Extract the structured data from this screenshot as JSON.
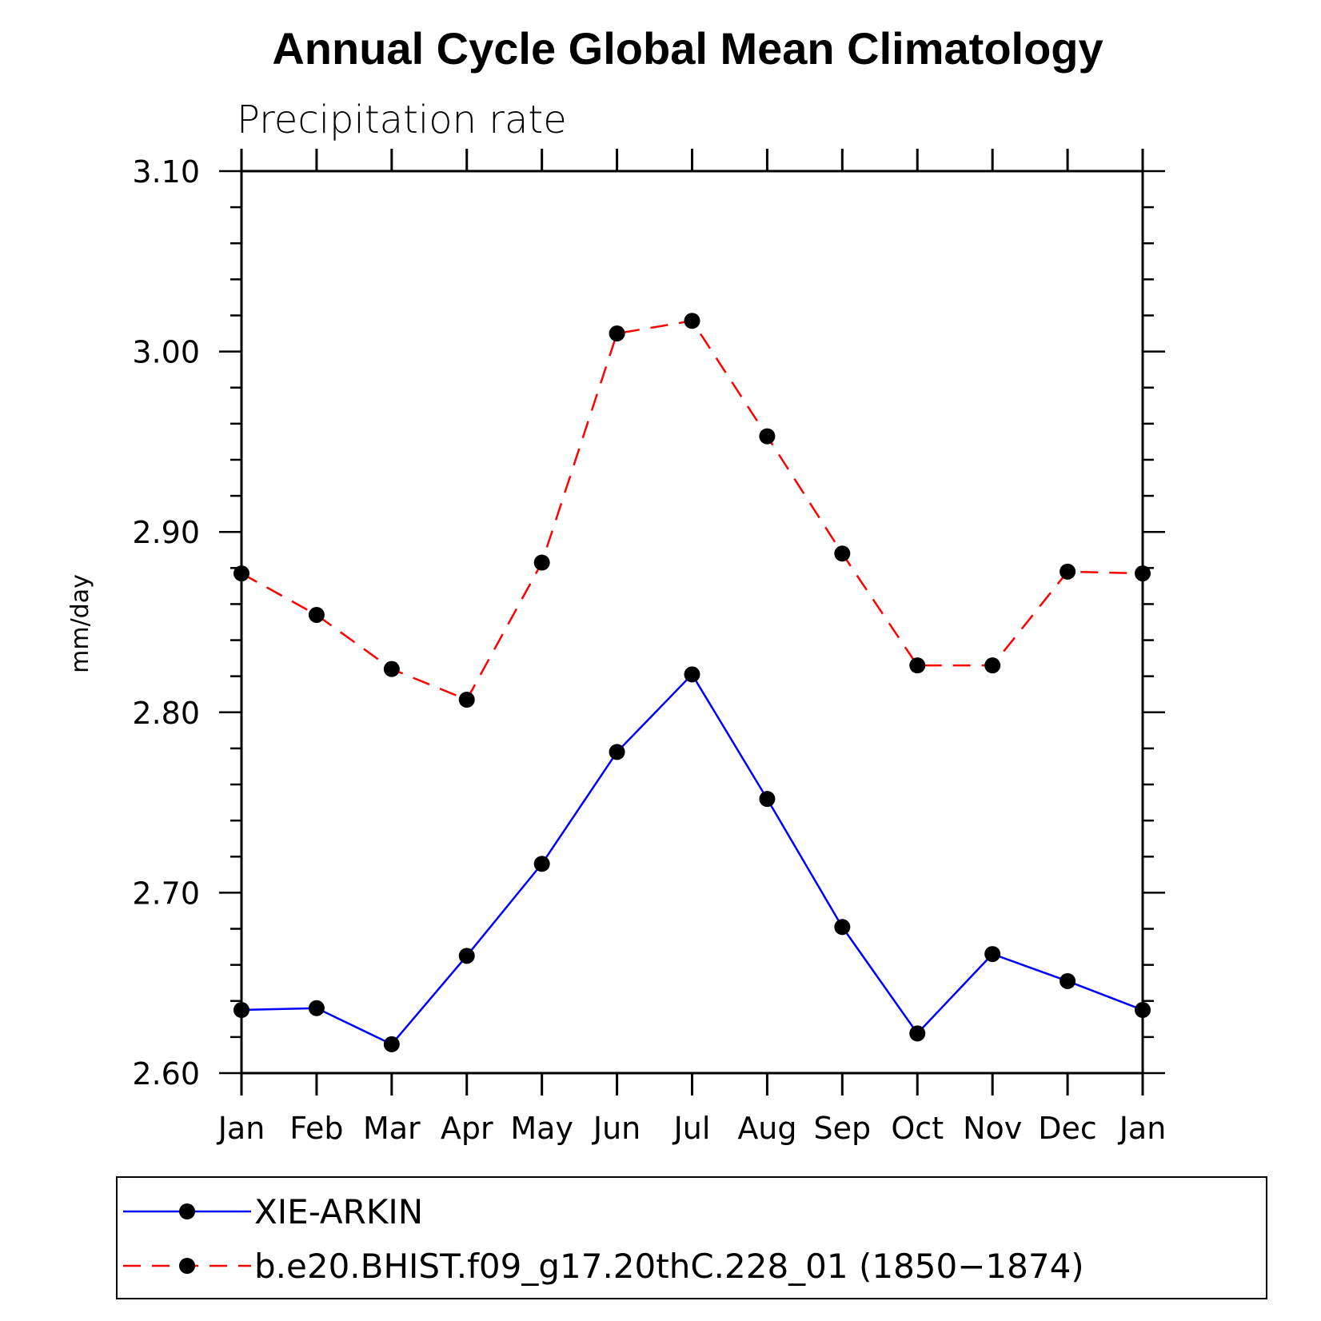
{
  "chart_data": {
    "type": "line",
    "title": "Annual Cycle Global Mean Climatology",
    "subtitle": "Precipitation rate",
    "xlabel": "",
    "ylabel": "mm/day",
    "categories": [
      "Jan",
      "Feb",
      "Mar",
      "Apr",
      "May",
      "Jun",
      "Jul",
      "Aug",
      "Sep",
      "Oct",
      "Nov",
      "Dec",
      "Jan"
    ],
    "ylim": [
      2.6,
      3.1
    ],
    "yticks": [
      "2.60",
      "2.70",
      "2.80",
      "2.90",
      "3.00",
      "3.10"
    ],
    "grid": false,
    "legend_position": "bottom",
    "series": [
      {
        "name": "XIE-ARKIN",
        "color": "#0000ff",
        "dash": "solid",
        "values": [
          2.635,
          2.636,
          2.616,
          2.665,
          2.716,
          2.778,
          2.821,
          2.752,
          2.681,
          2.622,
          2.666,
          2.651,
          2.635
        ]
      },
      {
        "name": "b.e20.BHIST.f09_g17.20thC.228_01 (1850−1874)",
        "color": "#ff0000",
        "dash": "dashed",
        "values": [
          2.877,
          2.854,
          2.824,
          2.807,
          2.883,
          3.01,
          3.017,
          2.953,
          2.888,
          2.826,
          2.826,
          2.878,
          2.877
        ]
      }
    ]
  }
}
